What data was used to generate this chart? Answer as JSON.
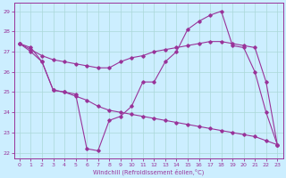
{
  "xlabel": "Windchill (Refroidissement éolien,°C)",
  "background_color": "#cceeff",
  "line_color": "#993399",
  "xlim_min": -0.5,
  "xlim_max": 23.5,
  "ylim_min": 21.7,
  "ylim_max": 29.4,
  "yticks": [
    22,
    23,
    24,
    25,
    26,
    27,
    28,
    29
  ],
  "xticks": [
    0,
    1,
    2,
    3,
    4,
    5,
    6,
    7,
    8,
    9,
    10,
    11,
    12,
    13,
    14,
    15,
    16,
    17,
    18,
    19,
    20,
    21,
    22,
    23
  ],
  "series1_x": [
    0,
    1,
    2,
    3,
    4,
    5,
    6,
    7,
    8,
    9,
    10,
    11,
    12,
    13,
    14,
    15,
    16,
    17,
    18,
    19,
    20,
    21,
    22,
    23
  ],
  "series1_y": [
    27.4,
    27.2,
    26.5,
    25.1,
    25.0,
    24.9,
    22.2,
    22.1,
    23.6,
    23.8,
    24.3,
    25.5,
    25.5,
    26.5,
    27.0,
    28.1,
    28.5,
    28.8,
    29.0,
    27.3,
    27.2,
    26.0,
    24.0,
    22.4
  ],
  "series2_x": [
    0,
    1,
    2,
    3,
    4,
    5,
    6,
    7,
    8,
    9,
    10,
    11,
    12,
    13,
    14,
    15,
    16,
    17,
    18,
    19,
    20,
    21,
    22,
    23
  ],
  "series2_y": [
    27.4,
    27.1,
    26.8,
    26.6,
    26.5,
    26.4,
    26.3,
    26.2,
    26.2,
    26.5,
    26.7,
    26.8,
    27.0,
    27.1,
    27.2,
    27.3,
    27.4,
    27.5,
    27.5,
    27.4,
    27.3,
    27.2,
    25.5,
    22.4
  ],
  "series3_x": [
    0,
    1,
    2,
    3,
    4,
    5,
    6,
    7,
    8,
    9,
    10,
    11,
    12,
    13,
    14,
    15,
    16,
    17,
    18,
    19,
    20,
    21,
    22,
    23
  ],
  "series3_y": [
    27.4,
    27.0,
    26.5,
    25.1,
    25.0,
    24.8,
    24.6,
    24.3,
    24.1,
    24.0,
    23.9,
    23.8,
    23.7,
    23.6,
    23.5,
    23.4,
    23.3,
    23.2,
    23.1,
    23.0,
    22.9,
    22.8,
    22.6,
    22.4
  ]
}
